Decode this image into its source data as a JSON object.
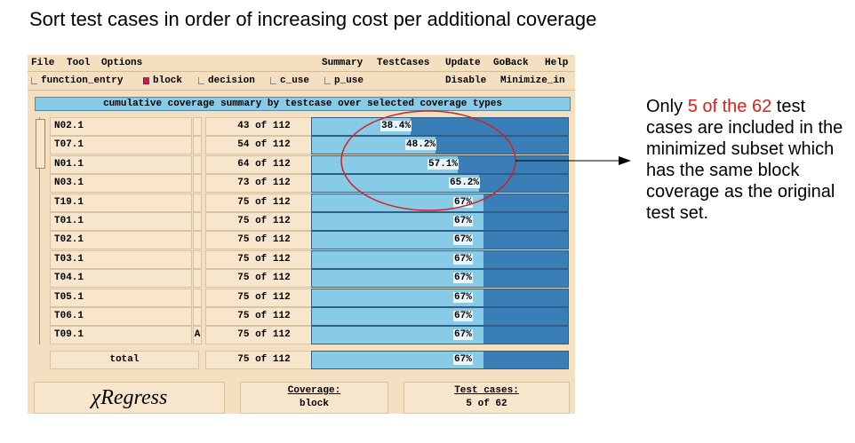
{
  "slide_title": "Sort test cases in order of increasing cost per additional coverage",
  "menu": {
    "file": "File",
    "tool": "Tool",
    "options": "Options",
    "summary": "Summary",
    "testcases": "TestCases",
    "update": "Update",
    "goback": "GoBack",
    "help": "Help"
  },
  "coverage_types": [
    {
      "label": "function_entry",
      "checked": false
    },
    {
      "label": "block",
      "checked": true
    },
    {
      "label": "decision",
      "checked": false
    },
    {
      "label": "c_use",
      "checked": false
    },
    {
      "label": "p_use",
      "checked": false
    }
  ],
  "toolbar": {
    "disable": "Disable",
    "minimize": "Minimize_in"
  },
  "summary_header": "cumulative coverage summary by testcase over selected coverage types",
  "rows": [
    {
      "name": "N02.1",
      "mark": "",
      "coverage": "43 of 112",
      "percent_label": "38.4%",
      "percent": 38.4
    },
    {
      "name": "T07.1",
      "mark": "",
      "coverage": "54 of 112",
      "percent_label": "48.2%",
      "percent": 48.2
    },
    {
      "name": "N01.1",
      "mark": "",
      "coverage": "64 of 112",
      "percent_label": "57.1%",
      "percent": 57.1
    },
    {
      "name": "N03.1",
      "mark": "",
      "coverage": "73 of 112",
      "percent_label": "65.2%",
      "percent": 65.2
    },
    {
      "name": "T19.1",
      "mark": "",
      "coverage": "75 of 112",
      "percent_label": "67%",
      "percent": 67
    },
    {
      "name": "T01.1",
      "mark": "",
      "coverage": "75 of 112",
      "percent_label": "67%",
      "percent": 67
    },
    {
      "name": "T02.1",
      "mark": "",
      "coverage": "75 of 112",
      "percent_label": "67%",
      "percent": 67
    },
    {
      "name": "T03.1",
      "mark": "",
      "coverage": "75 of 112",
      "percent_label": "67%",
      "percent": 67
    },
    {
      "name": "T04.1",
      "mark": "",
      "coverage": "75 of 112",
      "percent_label": "67%",
      "percent": 67
    },
    {
      "name": "T05.1",
      "mark": "",
      "coverage": "75 of 112",
      "percent_label": "67%",
      "percent": 67
    },
    {
      "name": "T06.1",
      "mark": "",
      "coverage": "75 of 112",
      "percent_label": "67%",
      "percent": 67
    },
    {
      "name": "T09.1",
      "mark": "A",
      "coverage": "75 of 112",
      "percent_label": "67%",
      "percent": 67
    }
  ],
  "total": {
    "name": "total",
    "coverage": "75 of 112",
    "percent_label": "67%",
    "percent": 67
  },
  "brand": "χRegress",
  "coverage_info": {
    "title": "Coverage:",
    "value": "block"
  },
  "testcase_info": {
    "title": "Test cases:",
    "value": "5 of 62"
  },
  "annotation": {
    "prefix": "Only ",
    "highlight": "5 of the 62",
    "suffix": " test cases are included in the minimized subset which has the same block coverage as the original test set."
  },
  "colors": {
    "highlight": "#e0201c",
    "bar_fill": "#88cbe6",
    "bar_bg": "#3a7eb8",
    "circle": "#d42020",
    "panel": "#f5dfc1"
  }
}
